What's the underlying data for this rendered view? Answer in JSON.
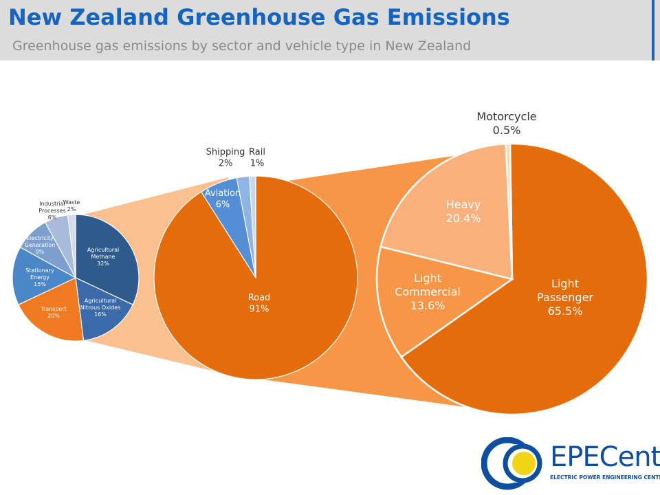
{
  "header": {
    "title": "New Zealand Greenhouse Gas Emissions",
    "subtitle": "Greenhouse gas emissions by sector and vehicle type in New Zealand"
  },
  "chart_data": [
    {
      "type": "pie",
      "slices": [
        {
          "label_lines": [
            "Agricultural",
            "Methane"
          ],
          "value_label": "32%",
          "value": 32,
          "color": "#2f5a8c"
        },
        {
          "label_lines": [
            "Agricultural",
            "Nitrous Oxides"
          ],
          "value_label": "16%",
          "value": 16,
          "color": "#3a6aa9"
        },
        {
          "label_lines": [
            "Transport"
          ],
          "value_label": "20%",
          "value": 20,
          "color": "#ef7a22"
        },
        {
          "label_lines": [
            "Stationary",
            "Energy"
          ],
          "value_label": "15%",
          "value": 15,
          "color": "#4a86c8"
        },
        {
          "label_lines": [
            "Electricity",
            "Generation"
          ],
          "value_label": "9%",
          "value": 9,
          "color": "#7c9fd0"
        },
        {
          "label_lines": [
            "Industrial",
            "Processes"
          ],
          "value_label": "6%",
          "value": 6,
          "color": "#a8bbdb"
        },
        {
          "label_lines": [
            "Waste"
          ],
          "value_label": "2%",
          "value": 2,
          "color": "#d4dceb"
        }
      ]
    },
    {
      "type": "pie",
      "slices": [
        {
          "label_lines": [
            "Road"
          ],
          "value_label": "91%",
          "value": 91,
          "color": "#e46c0a"
        },
        {
          "label_lines": [
            "Aviation"
          ],
          "value_label": "6%",
          "value": 6,
          "color": "#558ed5"
        },
        {
          "label_lines": [
            "Shipping"
          ],
          "value_label": "2%",
          "value": 2,
          "color": "#8db4e2"
        },
        {
          "label_lines": [
            "Rail"
          ],
          "value_label": "1%",
          "value": 1,
          "color": "#c6d9f1"
        }
      ]
    },
    {
      "type": "pie",
      "slices": [
        {
          "label_lines": [
            "Light",
            "Passenger"
          ],
          "value_label": "65.5%",
          "value": 65.5,
          "color": "#e46c0a"
        },
        {
          "label_lines": [
            "Light",
            "Commercial"
          ],
          "value_label": "13.6%",
          "value": 13.6,
          "color": "#f79646"
        },
        {
          "label_lines": [
            "Heavy"
          ],
          "value_label": "20.4%",
          "value": 20.4,
          "color": "#fab07a"
        },
        {
          "label_lines": [
            "Motorcycle"
          ],
          "value_label": "0.5%",
          "value": 0.5,
          "color": "#fcd5b5"
        }
      ]
    }
  ],
  "connectors": {
    "first_color": "#fac090",
    "second_color": "#f79646"
  },
  "logo": {
    "name": "EPECentre",
    "tagline": "ELECTRIC POWER ENGINEERING CENTRE",
    "colors": {
      "blue": "#0d4f9e",
      "yellow": "#f2d417"
    }
  }
}
